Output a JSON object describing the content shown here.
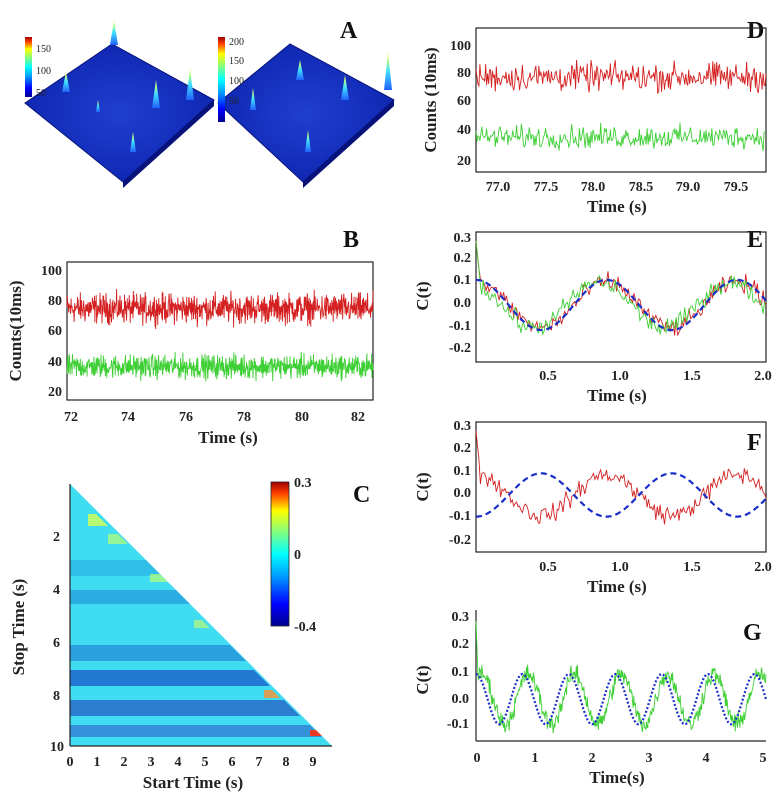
{
  "figure": {
    "panel_labels": [
      "A",
      "B",
      "C",
      "D",
      "E",
      "F",
      "G"
    ]
  },
  "panel_a": {
    "colorbar_left_ticks": [
      "150",
      "100",
      "50"
    ],
    "colorbar_right_ticks": [
      "200",
      "150",
      "100",
      "50"
    ]
  },
  "panel_b": {
    "xlabel": "Time (s)",
    "ylabel": "Counts(10ms)",
    "xticks": [
      "72",
      "74",
      "76",
      "78",
      "80",
      "82"
    ],
    "yticks": [
      "20",
      "40",
      "60",
      "80",
      "100"
    ]
  },
  "panel_c": {
    "xlabel": "Start Time (s)",
    "ylabel": "Stop Time (s)",
    "xticks": [
      "0",
      "1",
      "2",
      "3",
      "4",
      "5",
      "6",
      "7",
      "8",
      "9"
    ],
    "yticks": [
      "2",
      "4",
      "6",
      "8",
      "10"
    ],
    "colorbar_ticks": [
      "0.3",
      "0",
      "-0.4"
    ]
  },
  "panel_d": {
    "xlabel": "Time (s)",
    "ylabel": "Counts (10ms)",
    "xticks": [
      "77.0",
      "77.5",
      "78.0",
      "78.5",
      "79.0",
      "79.5"
    ],
    "yticks": [
      "20",
      "40",
      "60",
      "80",
      "100"
    ]
  },
  "panel_e": {
    "xlabel": "Time (s)",
    "ylabel": "C(t)",
    "xticks": [
      "0.5",
      "1.0",
      "1.5",
      "2.0"
    ],
    "yticks": [
      "-0.2",
      "-0.1",
      "0.0",
      "0.1",
      "0.2",
      "0.3"
    ]
  },
  "panel_f": {
    "xlabel": "Time (s)",
    "ylabel": "C(t)",
    "xticks": [
      "0.5",
      "1.0",
      "1.5",
      "2.0"
    ],
    "yticks": [
      "-0.2",
      "-0.1",
      "0.0",
      "0.1",
      "0.2",
      "0.3"
    ]
  },
  "panel_g": {
    "xlabel": "Time(s)",
    "ylabel": "C(t)",
    "xticks": [
      "0",
      "1",
      "2",
      "3",
      "4",
      "5"
    ],
    "yticks": [
      "-0.1",
      "0.0",
      "0.1",
      "0.2",
      "0.3"
    ]
  },
  "colors": {
    "red": "#d42020",
    "green": "#3ecf35",
    "fit": "#1a2fc8"
  },
  "chart_data": [
    {
      "id": "B",
      "type": "line",
      "xlabel": "Time (s)",
      "ylabel": "Counts(10ms)",
      "xlim": [
        72,
        82
      ],
      "ylim": [
        15,
        110
      ],
      "series": [
        {
          "color": "red",
          "noise": {
            "mean": 78,
            "amp": 15,
            "n": 900
          }
        },
        {
          "color": "green",
          "noise": {
            "mean": 38,
            "amp": 12,
            "n": 900
          }
        }
      ]
    },
    {
      "id": "D",
      "type": "line",
      "xlabel": "Time (s)",
      "ylabel": "Counts (10ms)",
      "xlim": [
        76.75,
        79.8
      ],
      "ylim": [
        12,
        115
      ],
      "series": [
        {
          "color": "red",
          "noise": {
            "mean": 80,
            "amp": 15,
            "n": 300
          }
        },
        {
          "color": "green",
          "noise": {
            "mean": 37,
            "amp": 12,
            "n": 300
          }
        }
      ]
    },
    {
      "id": "E",
      "type": "line",
      "xlabel": "Time (s)",
      "ylabel": "C(t)",
      "xlim": [
        0,
        2.0
      ],
      "ylim": [
        -0.25,
        0.32
      ],
      "series": [
        {
          "color": "red",
          "period": 0.9,
          "amp": 0.1,
          "noise": 0.06,
          "n": 200
        },
        {
          "color": "green",
          "period": 0.9,
          "amp": 0.1,
          "noise": 0.06,
          "n": 200
        },
        {
          "color": "fit",
          "dashed": true,
          "fit": {
            "amp": 0.11,
            "period": 0.9,
            "phase": 0.9
          }
        }
      ]
    },
    {
      "id": "F",
      "type": "line",
      "xlabel": "Time (s)",
      "ylabel": "C(t)",
      "xlim": [
        0,
        2.0
      ],
      "ylim": [
        -0.25,
        0.32
      ],
      "series": [
        {
          "color": "red",
          "period": 0.9,
          "amp": 0.09,
          "noise": 0.06,
          "n": 200
        },
        {
          "color": "fit",
          "dashed": true,
          "fit": {
            "amp": 0.095,
            "period": 0.9,
            "phase": 0.45
          }
        }
      ]
    },
    {
      "id": "G",
      "type": "line",
      "xlabel": "Time(s)",
      "ylabel": "C(t)",
      "xlim": [
        0,
        5
      ],
      "ylim": [
        -0.15,
        0.32
      ],
      "series": [
        {
          "color": "green",
          "period": 0.8,
          "amp": 0.09,
          "noise": 0.05,
          "n": 500
        },
        {
          "color": "fit",
          "dashed": true,
          "fit": {
            "amp": 0.09,
            "period": 0.8,
            "phase": 0.8
          }
        }
      ]
    }
  ]
}
